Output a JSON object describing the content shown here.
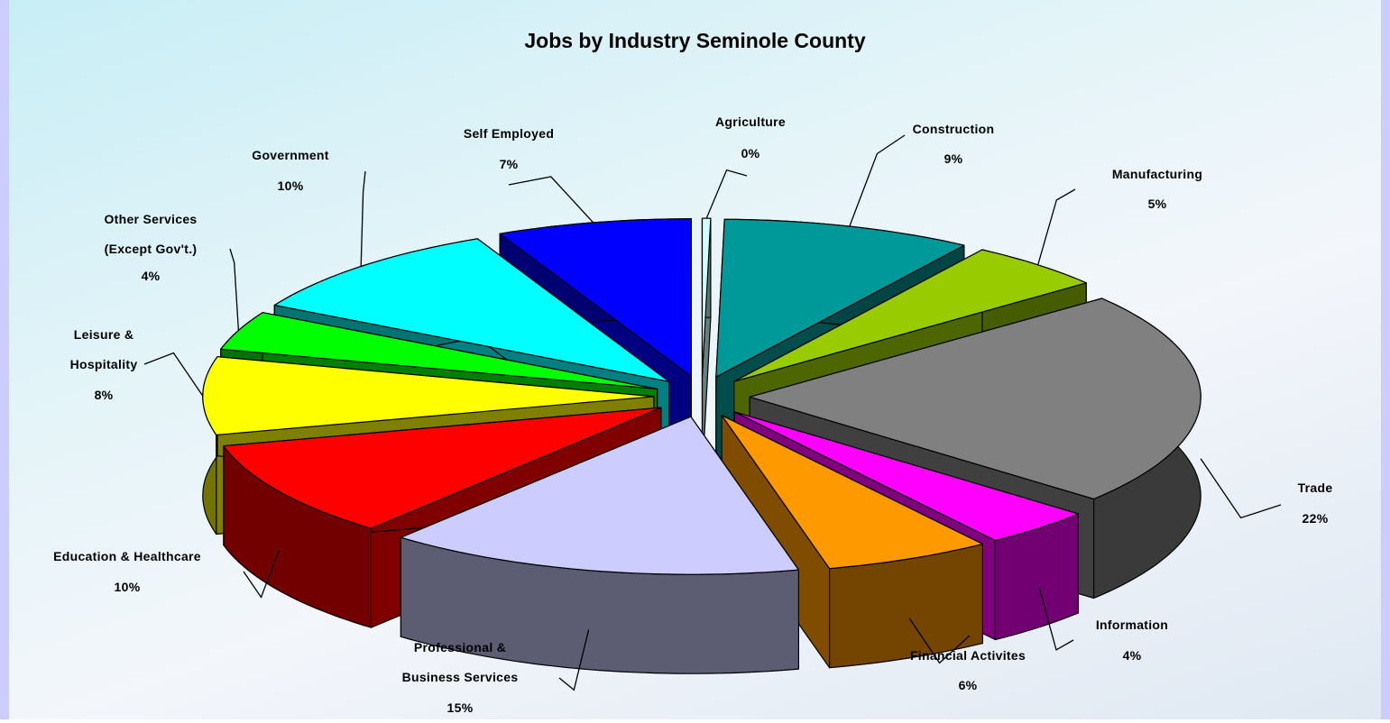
{
  "chart_data": {
    "type": "pie",
    "title": "Jobs by Industry Seminole County",
    "categories": [
      "Agriculture",
      "Construction",
      "Manufacturing",
      "Trade",
      "Information",
      "Financial Activites",
      "Professional & Business Services",
      "Education & Healthcare",
      "Leisure & Hospitality",
      "Other Services (Except Gov't.)",
      "Government",
      "Self Employed"
    ],
    "values": [
      0.3,
      9,
      5,
      22,
      4,
      6,
      15,
      10,
      8,
      4,
      10,
      7
    ],
    "value_labels": [
      "0%",
      "9%",
      "5%",
      "22%",
      "4%",
      "6%",
      "15%",
      "10%",
      "8%",
      "4%",
      "10%",
      "7%"
    ],
    "colors": [
      "#ccffff",
      "#009999",
      "#99cc00",
      "#808080",
      "#ff00ff",
      "#ff9900",
      "#ccccff",
      "#ff0000",
      "#ffff00",
      "#00ff00",
      "#00ffff",
      "#0000ff"
    ]
  }
}
